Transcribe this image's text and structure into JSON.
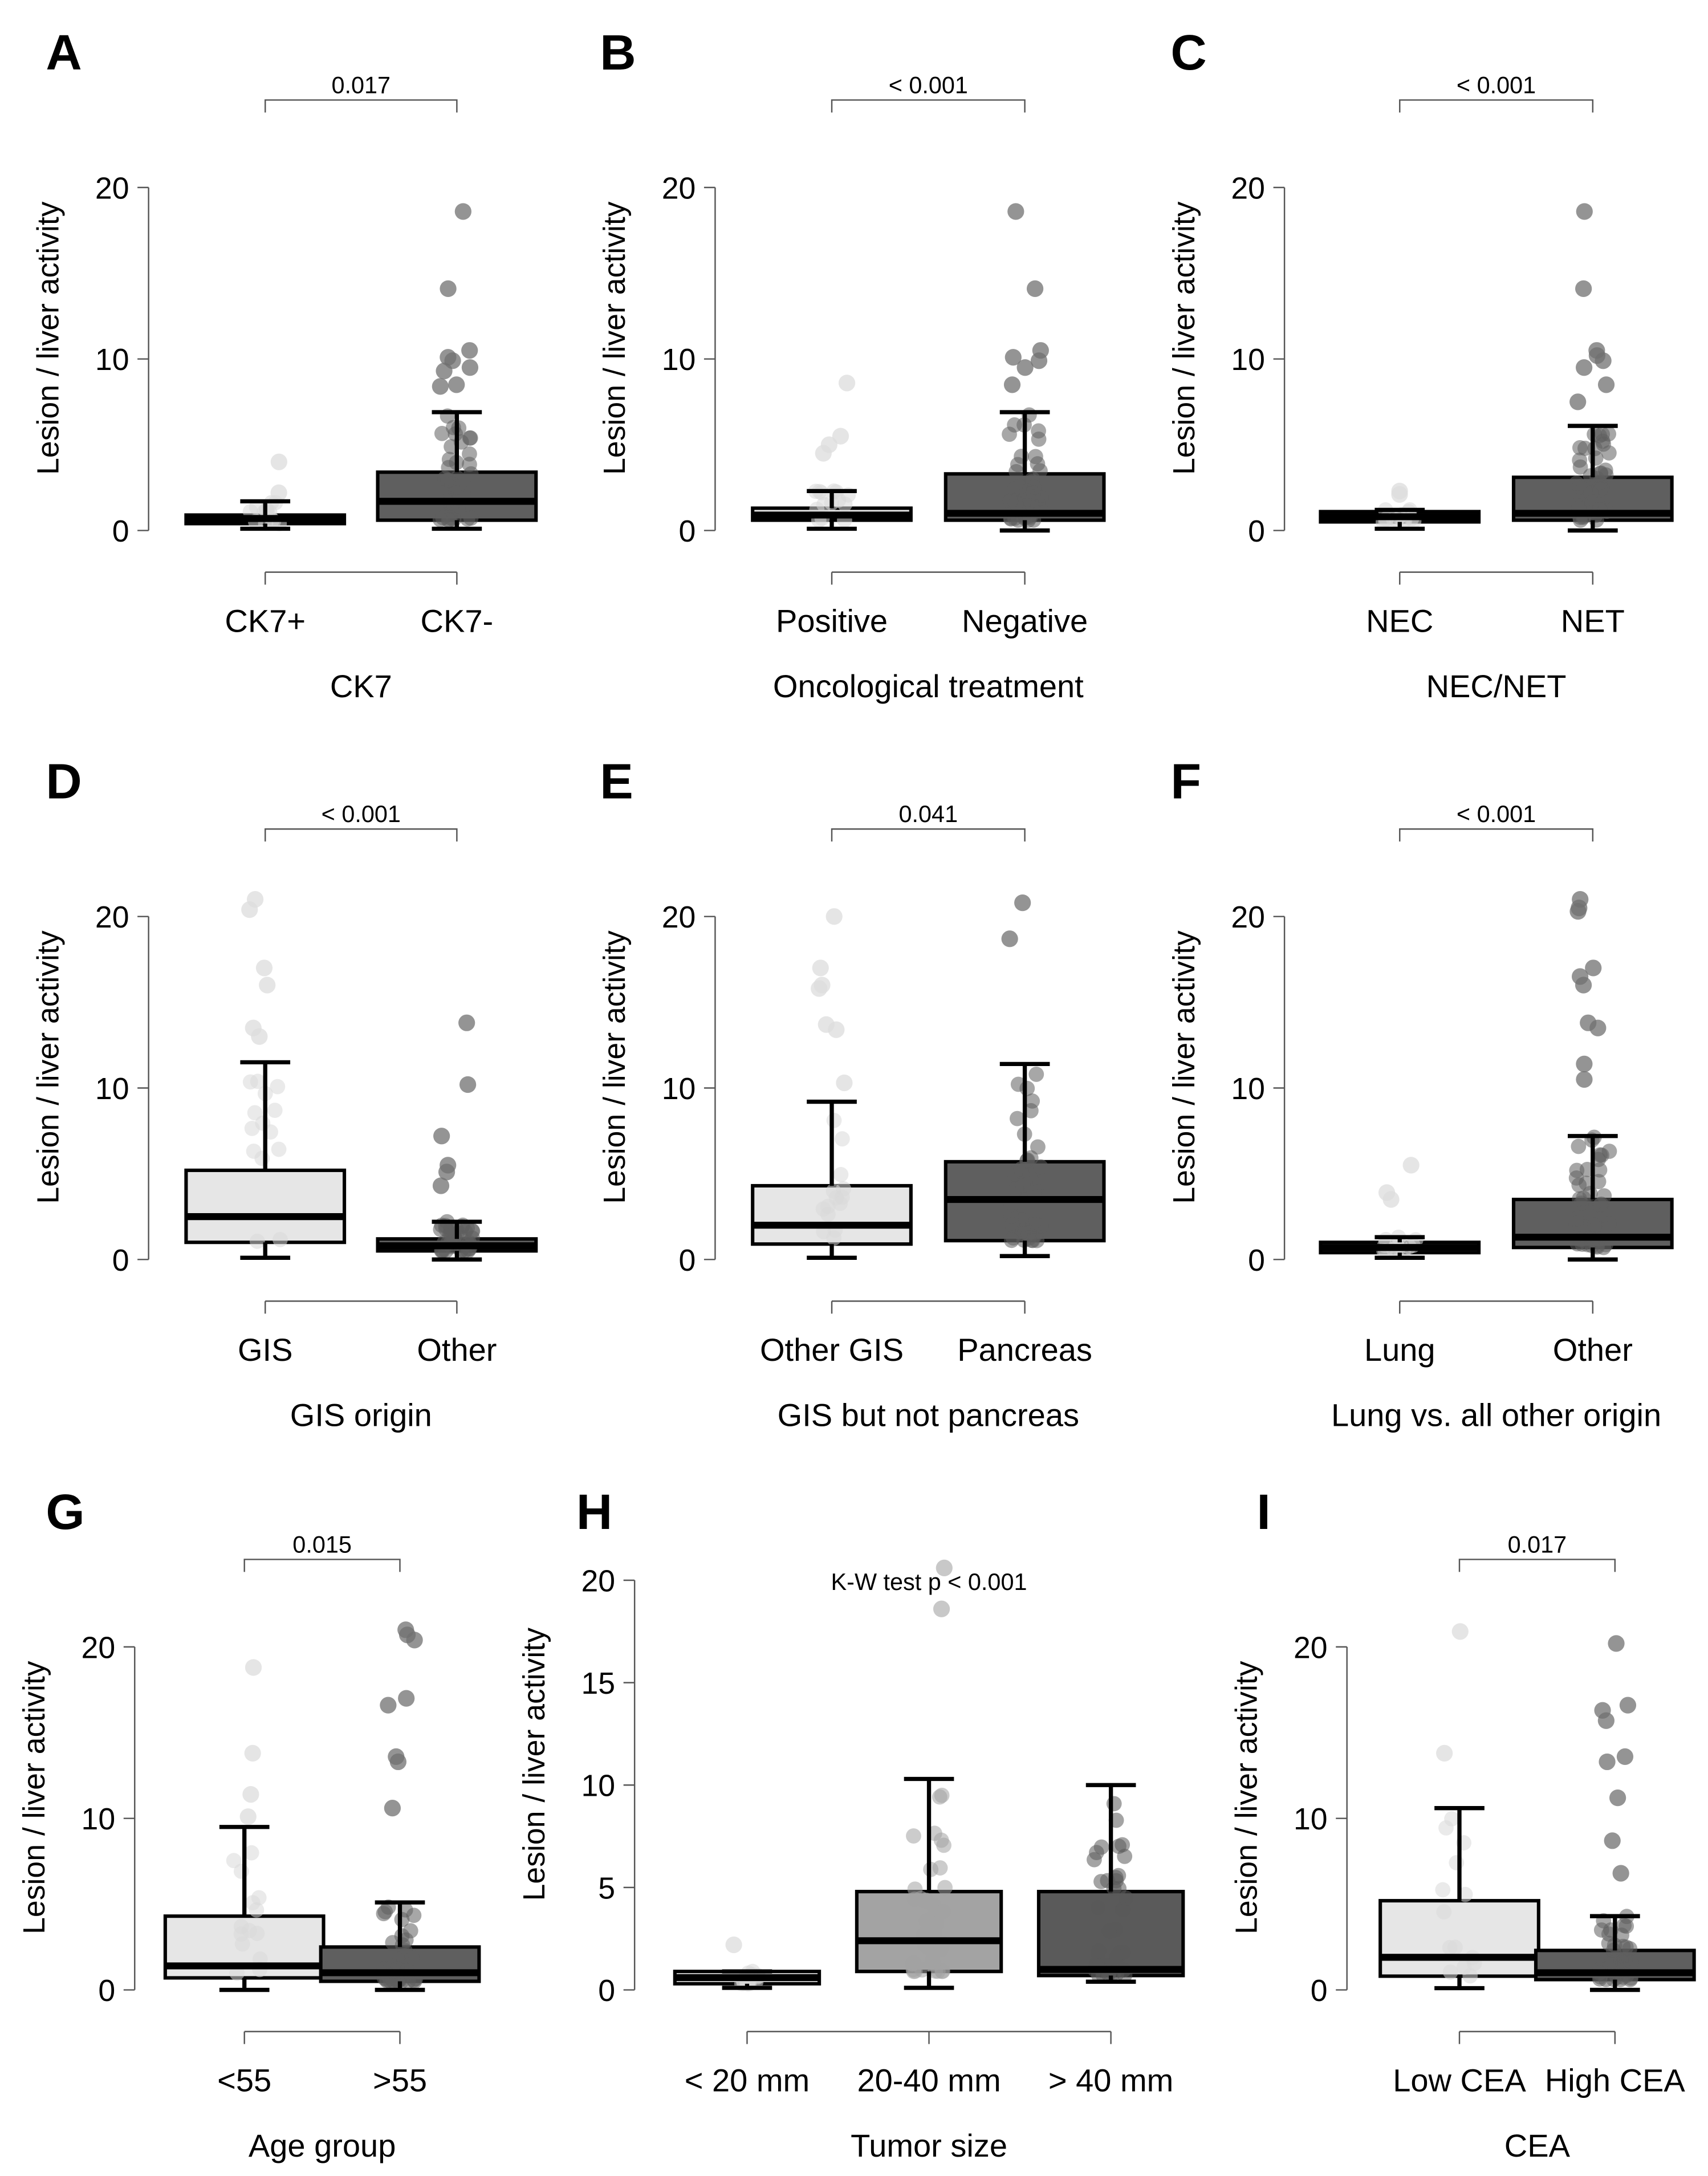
{
  "chart_data": [
    {
      "type": "box",
      "panel": "A",
      "p_label": "0.017",
      "ylabel": "Lesion  / liver activity",
      "xlabel": "CK7",
      "yticks": [
        0,
        10,
        20
      ],
      "ylim": [
        0,
        20
      ],
      "groups": [
        {
          "name": "CK7+",
          "whisker_low": 0.1,
          "q1": 0.4,
          "median": 0.7,
          "q3": 0.9,
          "whisker_high": 1.7,
          "outliers": [
            4.0,
            2.2
          ],
          "color": "#e6e6e6"
        },
        {
          "name": "CK7-",
          "whisker_low": 0.1,
          "q1": 0.6,
          "median": 1.7,
          "q3": 3.4,
          "whisker_high": 6.9,
          "outliers": [
            18.6,
            14.1,
            10.5,
            10.1,
            9.9,
            9.5,
            9.3,
            8.5,
            8.4
          ],
          "color": "#5f5f5f"
        }
      ]
    },
    {
      "type": "box",
      "panel": "B",
      "p_label": "< 0.001",
      "ylabel": "Lesion / liver activity",
      "xlabel": "Oncological treatment",
      "yticks": [
        0,
        10,
        20
      ],
      "ylim": [
        0,
        20
      ],
      "groups": [
        {
          "name": "Positive",
          "whisker_low": 0.1,
          "q1": 0.6,
          "median": 0.9,
          "q3": 1.3,
          "whisker_high": 2.3,
          "outliers": [
            8.6,
            5.5,
            5.0,
            4.5
          ],
          "color": "#e6e6e6"
        },
        {
          "name": "Negative",
          "whisker_low": 0.0,
          "q1": 0.6,
          "median": 1.0,
          "q3": 3.3,
          "whisker_high": 6.9,
          "outliers": [
            18.6,
            14.1,
            10.5,
            10.1,
            9.9,
            9.5,
            8.5
          ],
          "color": "#5f5f5f"
        }
      ]
    },
    {
      "type": "box",
      "panel": "C",
      "p_label": "< 0.001",
      "ylabel": "Lesion / liver activity",
      "xlabel": "NEC/NET",
      "yticks": [
        0,
        10,
        20
      ],
      "ylim": [
        0,
        20
      ],
      "groups": [
        {
          "name": "NEC",
          "whisker_low": 0.1,
          "q1": 0.5,
          "median": 0.8,
          "q3": 1.1,
          "whisker_high": 1.2,
          "outliers": [
            2.3,
            2.1
          ],
          "color": "#e6e6e6"
        },
        {
          "name": "NET",
          "whisker_low": 0.0,
          "q1": 0.6,
          "median": 1.0,
          "q3": 3.1,
          "whisker_high": 6.1,
          "outliers": [
            18.6,
            14.1,
            10.5,
            10.2,
            9.9,
            9.5,
            8.5,
            7.5
          ],
          "color": "#5f5f5f"
        }
      ]
    },
    {
      "type": "box",
      "panel": "D",
      "p_label": "< 0.001",
      "ylabel": "Lesion / liver activity",
      "xlabel": "GIS origin",
      "yticks": [
        0,
        10,
        20
      ],
      "ylim": [
        0,
        20
      ],
      "groups": [
        {
          "name": "GIS",
          "whisker_low": 0.1,
          "q1": 1.0,
          "median": 2.5,
          "q3": 5.2,
          "whisker_high": 11.5,
          "outliers": [
            21.0,
            20.4,
            17.0,
            16.0,
            13.5,
            13.0
          ],
          "color": "#e6e6e6"
        },
        {
          "name": "Other",
          "whisker_low": 0.0,
          "q1": 0.5,
          "median": 0.8,
          "q3": 1.2,
          "whisker_high": 2.2,
          "outliers": [
            13.8,
            10.2,
            7.2,
            5.5,
            5.1,
            4.3
          ],
          "color": "#5f5f5f"
        }
      ]
    },
    {
      "type": "box",
      "panel": "E",
      "p_label": "0.041",
      "ylabel": "Lesion / liver activity",
      "xlabel": "GIS but not pancreas",
      "yticks": [
        0,
        10,
        20
      ],
      "ylim": [
        0,
        20
      ],
      "groups": [
        {
          "name": "Other GIS",
          "whisker_low": 0.1,
          "q1": 0.9,
          "median": 2.0,
          "q3": 4.3,
          "whisker_high": 9.2,
          "outliers": [
            20.0,
            17.0,
            16.0,
            15.8,
            13.7,
            13.4,
            10.3
          ],
          "color": "#e6e6e6"
        },
        {
          "name": "Pancreas",
          "whisker_low": 0.2,
          "q1": 1.1,
          "median": 3.5,
          "q3": 5.7,
          "whisker_high": 11.4,
          "outliers": [
            20.8,
            18.7
          ],
          "color": "#5f5f5f"
        }
      ]
    },
    {
      "type": "box",
      "panel": "F",
      "p_label": "< 0.001",
      "ylabel": "Lesion / liver activity",
      "xlabel": "Lung vs. all other origin",
      "yticks": [
        0,
        10,
        20
      ],
      "ylim": [
        0,
        20
      ],
      "groups": [
        {
          "name": "Lung",
          "whisker_low": 0.1,
          "q1": 0.4,
          "median": 0.7,
          "q3": 1.0,
          "whisker_high": 1.3,
          "outliers": [
            5.5,
            3.9,
            3.5
          ],
          "color": "#e6e6e6"
        },
        {
          "name": "Other",
          "whisker_low": 0.0,
          "q1": 0.7,
          "median": 1.3,
          "q3": 3.5,
          "whisker_high": 7.2,
          "outliers": [
            21.0,
            20.5,
            20.3,
            17.0,
            16.5,
            16.0,
            13.8,
            13.5,
            11.4,
            10.5
          ],
          "color": "#5f5f5f"
        }
      ]
    },
    {
      "type": "box",
      "panel": "G",
      "p_label": "0.015",
      "ylabel": "Lesion / liver activity",
      "xlabel": "Age group",
      "yticks": [
        0,
        10,
        20
      ],
      "ylim": [
        0,
        20
      ],
      "groups": [
        {
          "name": "<55",
          "whisker_low": 0.0,
          "q1": 0.7,
          "median": 1.4,
          "q3": 4.3,
          "whisker_high": 9.5,
          "outliers": [
            18.8,
            13.8,
            11.4,
            10.1
          ],
          "color": "#e6e6e6"
        },
        {
          "name": ">55",
          "whisker_low": 0.0,
          "q1": 0.5,
          "median": 1.0,
          "q3": 2.5,
          "whisker_high": 5.1,
          "outliers": [
            21.0,
            20.7,
            20.4,
            17.0,
            16.6,
            13.6,
            13.3,
            10.6
          ],
          "color": "#5f5f5f"
        }
      ]
    },
    {
      "type": "box",
      "panel": "H",
      "p_label": "K-W test p < 0.001",
      "ylabel": "Lesion / liver activity",
      "xlabel": "Tumor size",
      "yticks": [
        0,
        5,
        10,
        15,
        20
      ],
      "ylim": [
        0,
        20
      ],
      "groups": [
        {
          "name": "< 20 mm",
          "whisker_low": 0.1,
          "q1": 0.3,
          "median": 0.6,
          "q3": 0.9,
          "whisker_high": 0.9,
          "outliers": [
            2.2
          ],
          "color": "#ececec"
        },
        {
          "name": "20-40 mm",
          "whisker_low": 0.1,
          "q1": 0.9,
          "median": 2.4,
          "q3": 4.8,
          "whisker_high": 10.3,
          "outliers": [
            20.6,
            18.6
          ],
          "color": "#a3a3a3"
        },
        {
          "name": "> 40 mm",
          "whisker_low": 0.4,
          "q1": 0.7,
          "median": 1.0,
          "q3": 4.8,
          "whisker_high": 10.0,
          "outliers": [],
          "color": "#5a5a5a"
        }
      ]
    },
    {
      "type": "box",
      "panel": "I",
      "p_label": "0.017",
      "ylabel": "Lesion / liver activity",
      "xlabel": "CEA",
      "yticks": [
        0,
        10,
        20
      ],
      "ylim": [
        0,
        20
      ],
      "groups": [
        {
          "name": "Low CEA",
          "whisker_low": 0.1,
          "q1": 0.8,
          "median": 1.9,
          "q3": 5.2,
          "whisker_high": 10.6,
          "outliers": [
            20.9,
            13.8
          ],
          "color": "#e6e6e6"
        },
        {
          "name": "High CEA",
          "whisker_low": 0.0,
          "q1": 0.6,
          "median": 1.0,
          "q3": 2.3,
          "whisker_high": 4.3,
          "outliers": [
            20.2,
            16.6,
            16.3,
            15.7,
            13.6,
            13.3,
            11.2,
            8.7,
            6.8
          ],
          "color": "#5f5f5f"
        }
      ]
    }
  ]
}
